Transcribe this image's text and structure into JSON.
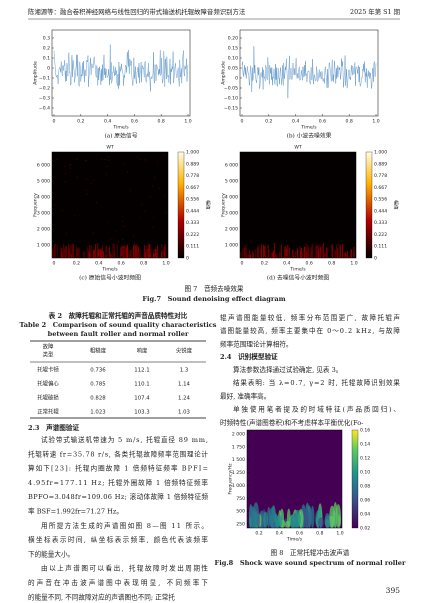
{
  "header": {
    "left": "陈湘源等：融合卷积神经网络与线性回归的带式输送机托辊故障音频识别方法",
    "right": "2025 年第 S1 期"
  },
  "figure7": {
    "panels": [
      {
        "ylabel": "Amplitude",
        "yticks": [
          "0.3",
          "0.2",
          "0.1",
          "0",
          "−0.1",
          "−0.2",
          "−0.3",
          "−0.4"
        ],
        "xticks": [
          "0",
          "0.2",
          "0.4",
          "0.6",
          "0.8",
          "1.0"
        ],
        "xlabel": "Time/s",
        "caption": "(a) 原始信号"
      },
      {
        "ylabel": "Amplitude",
        "yticks": [
          "0.20",
          "0.15",
          "0.10",
          "0.05",
          "0",
          "−0.05",
          "−0.10",
          "−0.15"
        ],
        "xticks": [
          "0",
          "0.2",
          "0.4",
          "0.6",
          "0.8",
          "1.0"
        ],
        "xlabel": "Time/s",
        "caption": "(b) 小波去噪效果"
      },
      {
        "title": "WT",
        "ylabel": "Frequency",
        "yticks": [
          "6 000",
          "5 000",
          "4 000",
          "3 000",
          "2 000",
          "1 000"
        ],
        "xticks": [
          "0",
          "0.2",
          "0.4",
          "0.6",
          "0.8",
          "1.0"
        ],
        "xlabel": "Time/s",
        "caption": "(c) 原始信号小波时频图",
        "cbticks": [
          "1.000",
          "0.889",
          "0.778",
          "0.667",
          "0.556",
          "0.444",
          "0.333",
          "0.222",
          "0.111",
          "0"
        ],
        "cblabel": "幅值"
      },
      {
        "title": "WT",
        "ylabel": "Frequency",
        "yticks": [
          "6 000",
          "5 000",
          "4 000",
          "3 000",
          "2 000",
          "1 000"
        ],
        "xticks": [
          "0",
          "0.2",
          "0.4",
          "0.6",
          "0.8",
          "1.0"
        ],
        "xlabel": "Time/s",
        "caption": "(d) 去噪信号小波时频图",
        "cbticks": [
          "1.000",
          "0.889",
          "0.778",
          "0.667",
          "0.556",
          "0.444",
          "0.333",
          "0.222",
          "0.111",
          "0"
        ],
        "cblabel": "幅值"
      }
    ],
    "caption_cn": "图 7　音频去噪效果",
    "caption_en": "Fig.7　Sound denoising effect diagram"
  },
  "table2": {
    "caption_cn": "表 2　故障托辊和正常托辊的声音品质特性对比",
    "caption_en": [
      "Table 2　Comparison of sound quality characteristics",
      "between fault roller and normal roller"
    ],
    "header": [
      [
        "故障",
        "类型"
      ],
      [
        "粗糙度"
      ],
      [
        "响度"
      ],
      [
        "尖锐度"
      ]
    ],
    "rows": [
      [
        "托辊卡顿",
        "0.736",
        "112.1",
        "1.3"
      ],
      [
        "托辊偏心",
        "0.785",
        "110.1",
        "1.14"
      ],
      [
        "托辊破损",
        "0.828",
        "107.4",
        "1.24"
      ],
      [
        "正常托辊",
        "1.023",
        "103.3",
        "1.03"
      ]
    ]
  },
  "section23": {
    "heading": "2.3　声谱图验证",
    "lines": [
      "试验带式输送机带速为 5 m/s, 托辊直径 89 mm,",
      "托辊转速 fr=35.78 r/s, 各类托辊故障频率范围理论计",
      "算如下[23]: 托辊内圈故障 1 倍频特征频率 BPFI=",
      "4.95fr=177.11 Hz; 托辊外圈故障 1 倍频特征频率",
      "BPFO=3.048fr=109.06 Hz; 滚动体故障 1 倍频特征频",
      "率 BSF=1.992fr=71.27 Hz。",
      "用所提方法生成的声谱图如图 8—图 11 所示。",
      "横坐标表示时间, 纵坐标表示频率, 颜色代表该频率",
      "下的能量大小。",
      "由以上声谱图可以看出, 托辊故障时发出周期性",
      "的声音在冲击波声谱图中表现明显, 不同频率下",
      "的能量不同, 不同故障对应的声谱图也不同; 正常托"
    ]
  },
  "right_top": [
    "辊声谱图能量较低, 频率分布范围更广, 故障托辊声",
    "谱图能量较高, 频率主要集中在 0～0.2 kHz, 与故障",
    "频率范围理论计算相符。"
  ],
  "section24": {
    "heading": "2.4　识别模型验证",
    "lines": [
      "算法参数选择通过试验确定, 见表 3。",
      "结果表明: 当 λ=0.7, γ=2 时, 托辊故障识别效果",
      "最好, 准确率高。",
      "单独使用笔者提及的时域特征(声品质回归)、",
      "时频特性(声谱图卷积)和不考虑样本平衡优化(Fo-"
    ]
  },
  "figure8": {
    "ylabel": "Frequency/Hz",
    "yticks": [
      "2 000",
      "1 750",
      "1 500",
      "1 250",
      "1 000",
      "750",
      "500",
      "250"
    ],
    "xticks": [
      "0.2",
      "0.4",
      "0.6",
      "0.8",
      "1.0"
    ],
    "xlabel": "Time/s",
    "cbticks": [
      "0.16",
      "0.14",
      "0.12",
      "0.10",
      "0.08",
      "0.06",
      "0.04",
      "0.02"
    ],
    "caption_cn": "图 8　正常托辊冲击波声谱",
    "caption_en": "Fig.8　Shock wave sound spectrum of normal roller"
  },
  "page_number": "395"
}
